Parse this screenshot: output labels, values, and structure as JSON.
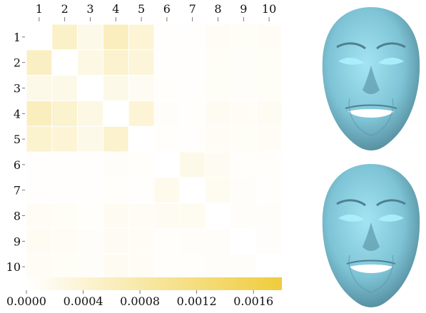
{
  "chart_data": {
    "type": "heatmap",
    "title": "",
    "xlabel": "",
    "ylabel": "",
    "x_categories": [
      "1",
      "2",
      "3",
      "4",
      "5",
      "6",
      "7",
      "8",
      "9",
      "10"
    ],
    "y_categories": [
      "1",
      "2",
      "3",
      "4",
      "5",
      "6",
      "7",
      "8",
      "9",
      "10"
    ],
    "values": [
      [
        0.0,
        0.0005,
        0.0002,
        0.0006,
        0.0004,
        3e-05,
        2e-05,
        0.0001,
        8e-05,
        0.0001
      ],
      [
        0.00055,
        0.0,
        0.00025,
        0.00045,
        0.00035,
        3e-05,
        2e-05,
        8e-05,
        6e-05,
        8e-05
      ],
      [
        0.0002,
        0.0002,
        0.0,
        0.0002,
        0.00012,
        4e-05,
        3e-05,
        8e-05,
        6e-05,
        8e-05
      ],
      [
        0.0006,
        0.00045,
        0.00025,
        0.0,
        0.0004,
        6e-05,
        5e-05,
        0.00012,
        0.0001,
        0.00012
      ],
      [
        0.00045,
        0.0004,
        0.0002,
        0.00045,
        0.0,
        4e-05,
        3e-05,
        0.0001,
        8e-05,
        0.0001
      ],
      [
        3e-05,
        3e-05,
        3e-05,
        6e-05,
        4e-05,
        0.0,
        0.0002,
        0.00012,
        4e-05,
        4e-05
      ],
      [
        2e-05,
        2e-05,
        3e-05,
        5e-05,
        3e-05,
        0.00018,
        0.0,
        0.00014,
        6e-05,
        4e-05
      ],
      [
        0.0001,
        8e-05,
        5e-05,
        0.00012,
        0.0001,
        0.00012,
        0.00014,
        0.0,
        6e-05,
        6e-05
      ],
      [
        0.00012,
        0.0001,
        6e-05,
        0.00012,
        0.0001,
        4e-05,
        6e-05,
        6e-05,
        0.0,
        6e-05
      ],
      [
        0.0001,
        8e-05,
        6e-05,
        0.00012,
        0.0001,
        4e-05,
        4e-05,
        6e-05,
        6e-05,
        0.0
      ]
    ],
    "colorbar": {
      "min": 0.0,
      "max": 0.0018,
      "tick_values": [
        0.0,
        0.0004,
        0.0008,
        0.0012,
        0.0016
      ],
      "tick_labels": [
        "0.0000",
        "0.0004",
        "0.0008",
        "0.0012",
        "0.0016"
      ],
      "color_low": "#ffffff",
      "color_high": "#f0cc3c"
    },
    "grid_line_color": "#ffffff"
  },
  "faces": {
    "skin_color": "#7ec4d6",
    "highlight_color": "#aef2ff",
    "shadow_color": "#4f7f8f",
    "icon": "face-3d-render-icon"
  }
}
